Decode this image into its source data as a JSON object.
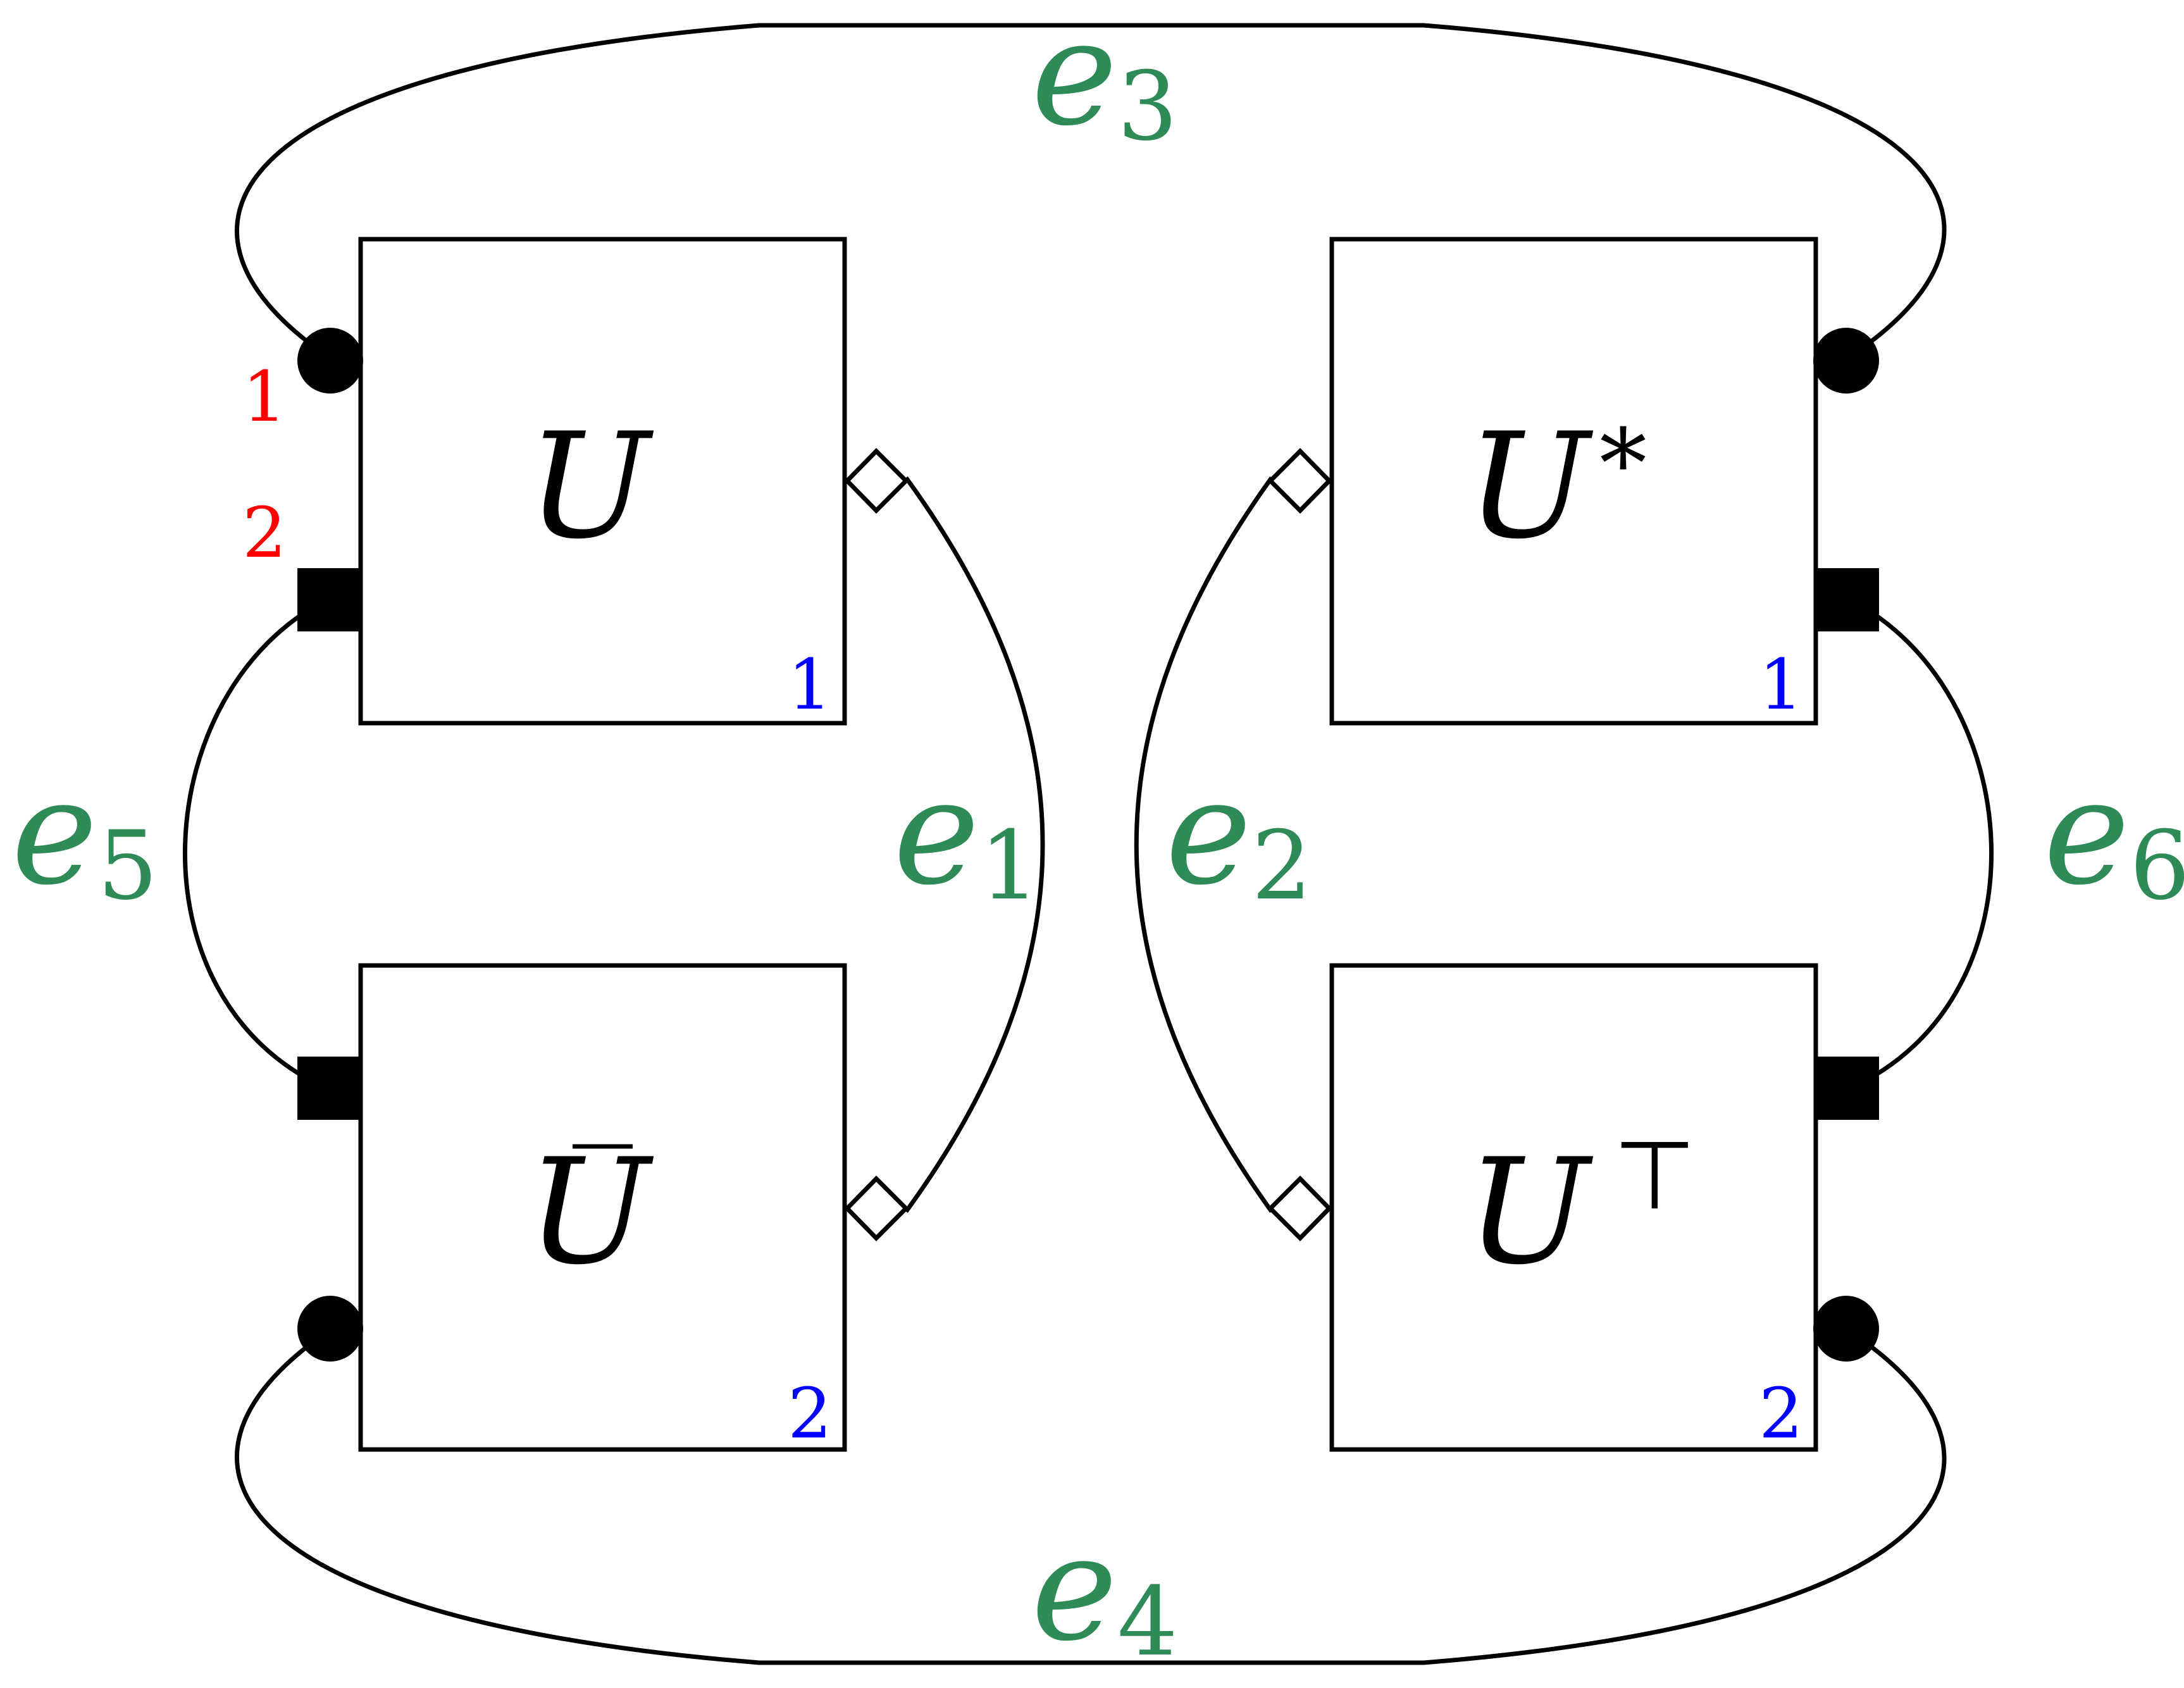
{
  "colors": {
    "edge_label": "#2e8b57",
    "port_index": "#ff0000",
    "box_index": "#0000ff",
    "ink": "#000000"
  },
  "boxes": {
    "top_left": {
      "base": "U",
      "sup": "",
      "bar": false,
      "index": "1"
    },
    "bottom_left": {
      "base": "U",
      "sup": "",
      "bar": true,
      "index": "2"
    },
    "top_right": {
      "base": "U",
      "sup": "*",
      "bar": false,
      "index": "1"
    },
    "bottom_right": {
      "base": "U",
      "sup": "⊤",
      "bar": false,
      "index": "2"
    }
  },
  "port_labels": {
    "first": "1",
    "second": "2"
  },
  "edges": [
    {
      "id": "e1",
      "base": "e",
      "sub": "1"
    },
    {
      "id": "e2",
      "base": "e",
      "sub": "2"
    },
    {
      "id": "e3",
      "base": "e",
      "sub": "3"
    },
    {
      "id": "e4",
      "base": "e",
      "sub": "4"
    },
    {
      "id": "e5",
      "base": "e",
      "sub": "5"
    },
    {
      "id": "e6",
      "base": "e",
      "sub": "6"
    }
  ],
  "ports": {
    "circle": "circle-port",
    "square": "square-port",
    "diamond": "diamond-port"
  }
}
